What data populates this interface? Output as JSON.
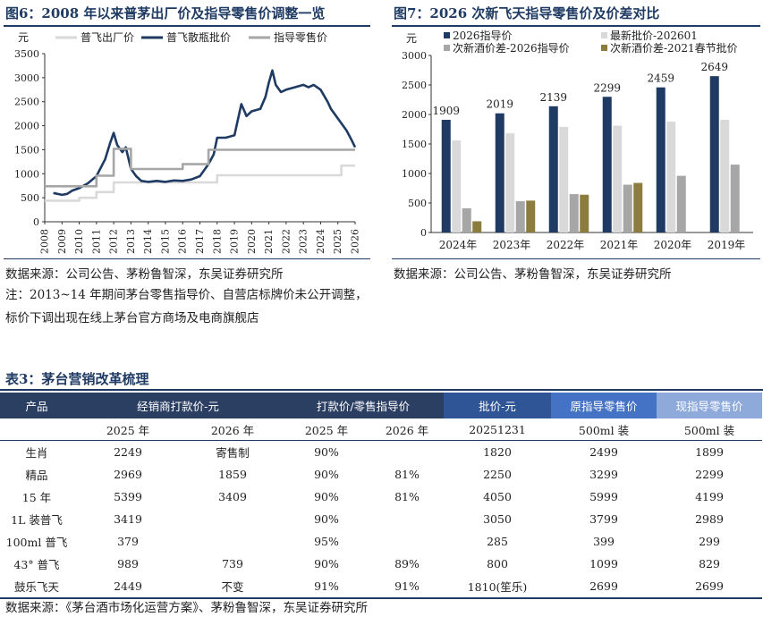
{
  "fig6": {
    "title": "图6：2008 年以来普茅出厂价及指导零售价调整一览",
    "source": "数据来源：公司公告、茅粉鲁智深，东吴证券研究所",
    "note": "注：2013~14 年期间茅台零售指导价、自营店标牌价未公开调整，标价下调出现在线上茅台官方商场及电商旗舰店"
  },
  "fig7": {
    "title": "图7：2026 次新飞天指导零售价及价差对比",
    "source": "数据来源：公司公告、茅粉鲁智深，东吴证券研究所"
  },
  "table3": {
    "title": "表3：茅台营销改革梳理",
    "headers": [
      "产品",
      "经销商打款价-元",
      "打款价/零售指导价",
      "批价-元",
      "原指导零售价",
      "现指导零售价"
    ],
    "subheaders": [
      "",
      "2025 年",
      "2026 年",
      "2025 年",
      "2026 年",
      "20251231",
      "500ml 装",
      "500ml 装"
    ],
    "rows": [
      [
        "生肖",
        "2249",
        "寄售制",
        "90%",
        "",
        "1820",
        "2499",
        "1899"
      ],
      [
        "精品",
        "2969",
        "1859",
        "90%",
        "81%",
        "2250",
        "3299",
        "2299"
      ],
      [
        "15 年",
        "5399",
        "3409",
        "90%",
        "81%",
        "4050",
        "5999",
        "4199"
      ],
      [
        "1L 装普飞",
        "3419",
        "",
        "90%",
        "",
        "3050",
        "3799",
        "2989"
      ],
      [
        "100ml 普飞",
        "379",
        "",
        "95%",
        "",
        "285",
        "399",
        "299"
      ],
      [
        "43° 普飞",
        "989",
        "739",
        "90%",
        "89%",
        "800",
        "1099",
        "829"
      ],
      [
        "鼓乐飞天",
        "2449",
        "不变",
        "91%",
        "91%",
        "1810(笙乐)",
        "2699",
        "2699"
      ]
    ],
    "source": "数据来源：《茅台酒市场化运营方案》、茅粉鲁智深，东吴证券研究所",
    "colors": {
      "dark": "#2b3f63",
      "mid": "#2f5596",
      "blue": "#4472c4",
      "light": "#8eaadb"
    }
  },
  "chart_data": [
    {
      "type": "line",
      "unit_label": "元",
      "xlim": [
        2008,
        2026
      ],
      "ylim": [
        0,
        3500
      ],
      "x_ticks": [
        "2008",
        "2009",
        "2010",
        "2011",
        "2012",
        "2013",
        "2014",
        "2015",
        "2016",
        "2017",
        "2018",
        "2019",
        "2020",
        "2021",
        "2022",
        "2023",
        "2024",
        "2025",
        "2026"
      ],
      "y_ticks": [
        "0",
        "500",
        "1000",
        "1500",
        "2000",
        "2500",
        "3000",
        "3500"
      ],
      "legend_position": "top",
      "series": [
        {
          "name": "普飞出厂价",
          "color": "#d9d9d9",
          "step": true,
          "points": [
            [
              2008,
              439
            ],
            [
              2010,
              439
            ],
            [
              2010,
              499
            ],
            [
              2011,
              499
            ],
            [
              2011,
              619
            ],
            [
              2012,
              619
            ],
            [
              2012,
              819
            ],
            [
              2018,
              819
            ],
            [
              2018,
              969
            ],
            [
              2025.2,
              969
            ],
            [
              2025.2,
              1169
            ],
            [
              2026,
              1169
            ]
          ]
        },
        {
          "name": "普飞散瓶批价",
          "color": "#1f3b63",
          "step": false,
          "points": [
            [
              2008.5,
              600
            ],
            [
              2009,
              560
            ],
            [
              2009.3,
              580
            ],
            [
              2009.6,
              650
            ],
            [
              2010,
              700
            ],
            [
              2010.5,
              800
            ],
            [
              2011,
              950
            ],
            [
              2011.5,
              1300
            ],
            [
              2011.8,
              1650
            ],
            [
              2012.0,
              1850
            ],
            [
              2012.2,
              1600
            ],
            [
              2012.5,
              1450
            ],
            [
              2012.7,
              1550
            ],
            [
              2013.0,
              1100
            ],
            [
              2013.3,
              950
            ],
            [
              2013.6,
              850
            ],
            [
              2014,
              830
            ],
            [
              2014.5,
              850
            ],
            [
              2015,
              830
            ],
            [
              2015.5,
              860
            ],
            [
              2016,
              850
            ],
            [
              2016.5,
              880
            ],
            [
              2017,
              950
            ],
            [
              2017.5,
              1200
            ],
            [
              2017.8,
              1400
            ],
            [
              2018,
              1750
            ],
            [
              2018.5,
              1750
            ],
            [
              2019,
              1800
            ],
            [
              2019.4,
              2450
            ],
            [
              2019.7,
              2200
            ],
            [
              2020,
              2300
            ],
            [
              2020.5,
              2350
            ],
            [
              2020.8,
              2600
            ],
            [
              2021.0,
              2900
            ],
            [
              2021.2,
              3150
            ],
            [
              2021.4,
              2850
            ],
            [
              2021.7,
              2700
            ],
            [
              2022,
              2750
            ],
            [
              2022.5,
              2800
            ],
            [
              2023,
              2850
            ],
            [
              2023.3,
              2800
            ],
            [
              2023.6,
              2850
            ],
            [
              2024,
              2750
            ],
            [
              2024.4,
              2500
            ],
            [
              2024.6,
              2350
            ],
            [
              2024.9,
              2200
            ],
            [
              2025.2,
              2050
            ],
            [
              2025.5,
              1900
            ],
            [
              2025.8,
              1700
            ],
            [
              2026,
              1550
            ]
          ]
        },
        {
          "name": "指导零售价",
          "color": "#a6a6a6",
          "step": true,
          "points": [
            [
              2008,
              739
            ],
            [
              2011,
              739
            ],
            [
              2011,
              959
            ],
            [
              2012,
              959
            ],
            [
              2012,
              1519
            ],
            [
              2013,
              1519
            ],
            [
              2013,
              1099
            ],
            [
              2016,
              1099
            ],
            [
              2016,
              1199
            ],
            [
              2017.5,
              1199
            ],
            [
              2017.5,
              1499
            ],
            [
              2026,
              1499
            ]
          ]
        }
      ]
    },
    {
      "type": "bar",
      "unit_label": "元",
      "ylim": [
        0,
        3000
      ],
      "y_ticks": [
        "0",
        "500",
        "1000",
        "1500",
        "2000",
        "2500",
        "3000"
      ],
      "categories": [
        "2024年",
        "2023年",
        "2022年",
        "2021年",
        "2020年",
        "2019年"
      ],
      "legend_position": "top",
      "series": [
        {
          "name": "2026指导价",
          "color": "#1f3b63",
          "values": [
            1909,
            2019,
            2139,
            2299,
            2459,
            2649
          ],
          "labels": [
            "1909",
            "2019",
            "2139",
            "2299",
            "2459",
            "2649"
          ]
        },
        {
          "name": "最新批价-202601",
          "color": "#d9d9d9",
          "values": [
            1560,
            1680,
            1790,
            1810,
            1880,
            1910
          ]
        },
        {
          "name": "次新酒价差-2026指导价",
          "color": "#a6a6a6",
          "values": [
            410,
            530,
            650,
            810,
            960,
            1150
          ]
        },
        {
          "name": "次新酒价差-2021春节批价",
          "color": "#8c7d3f",
          "values": [
            190,
            540,
            640,
            840,
            null,
            null
          ]
        }
      ]
    }
  ]
}
